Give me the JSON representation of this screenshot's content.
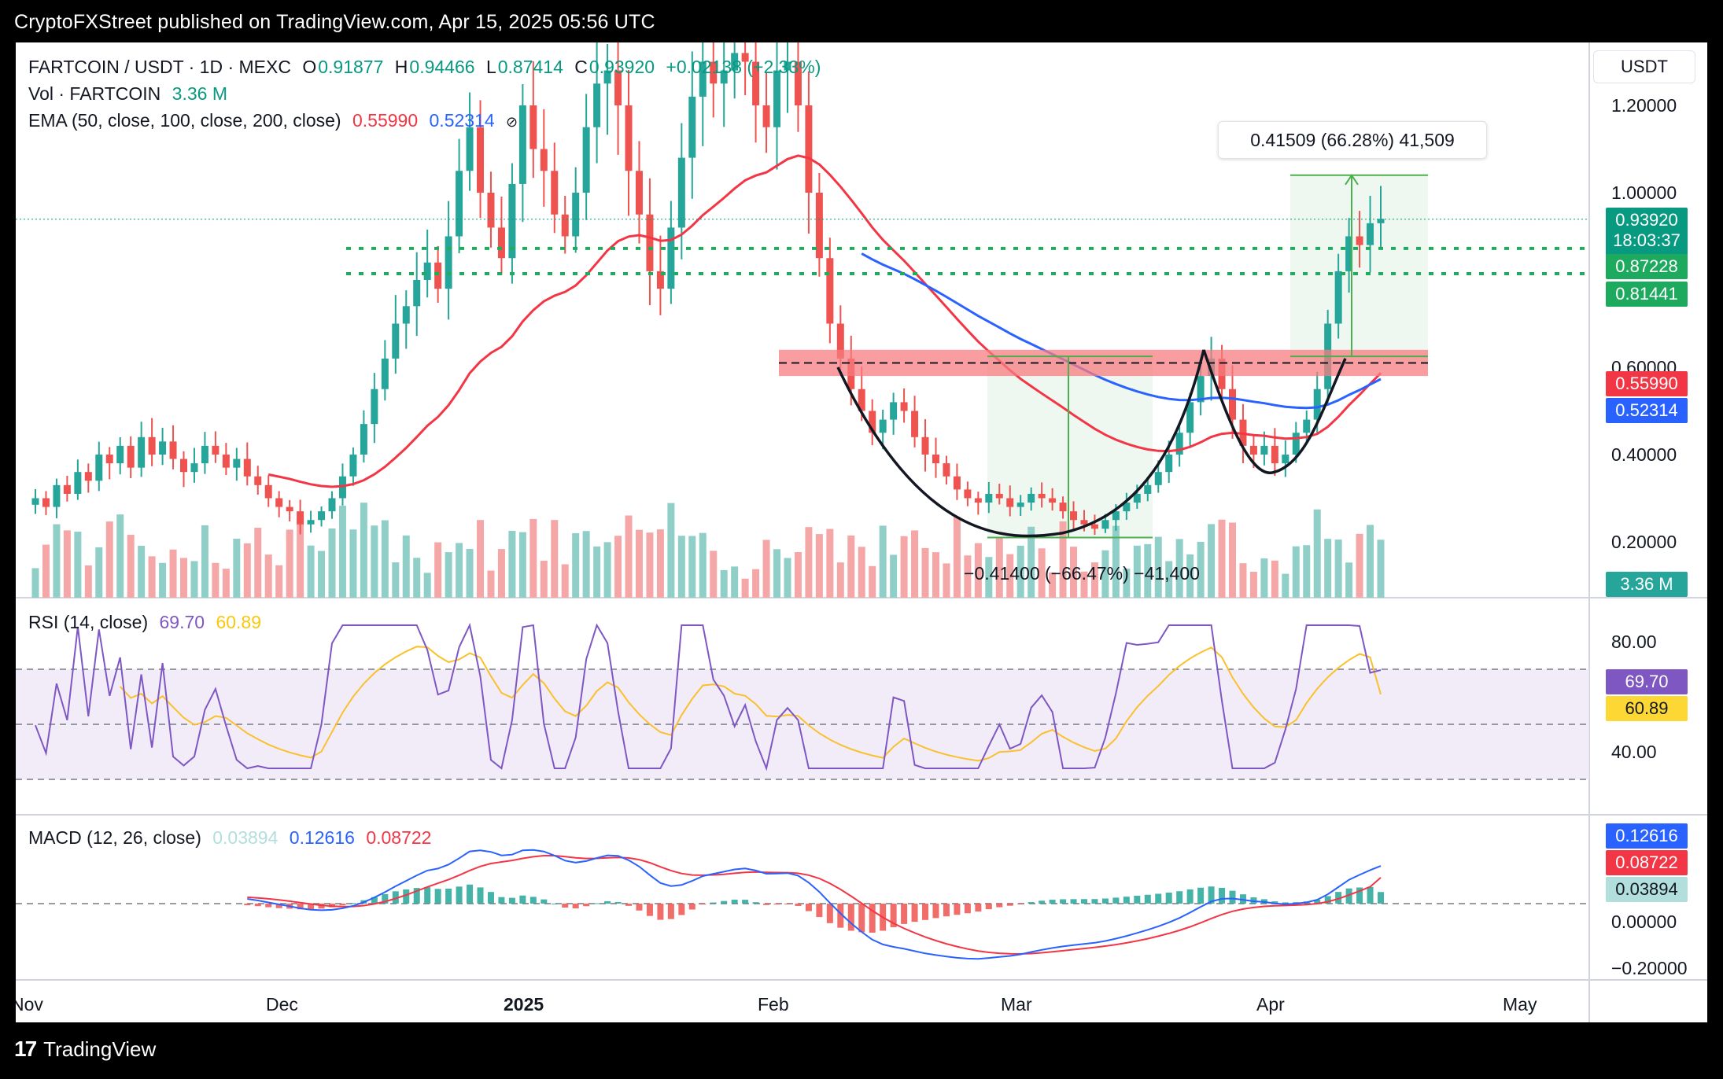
{
  "header": {
    "publisher": "CryptoFXStreet published on TradingView.com, Apr 15, 2025 05:56 UTC"
  },
  "footer": {
    "brand": "TradingView",
    "logo_icon": "tradingview-logo-icon"
  },
  "legend": {
    "symbol": "FARTCOIN / USDT · 1D · MEXC",
    "o_label": "O",
    "o_value": "0.91877",
    "h_label": "H",
    "h_value": "0.94466",
    "l_label": "L",
    "l_value": "0.87414",
    "c_label": "C",
    "c_value": "0.93920",
    "change": "+0.02138 (+2.33%)",
    "vol_label": "Vol · FARTCOIN",
    "vol_value": "3.36 M",
    "ema_label": "EMA (50, close, 100, close, 200, close)",
    "ema50_value": "0.55990",
    "ema100_value": "0.52314",
    "ema_icon": "hidden-eye-icon"
  },
  "currency": "USDT",
  "price_axis": [
    "1.20000",
    "1.00000",
    "0.60000",
    "0.40000",
    "0.20000"
  ],
  "price_tags": {
    "last": "0.93920",
    "countdown": "18:03:37",
    "res1": "0.87228",
    "res2": "0.81441",
    "ema50": "0.55990",
    "ema100": "0.52314",
    "volume": "3.36 M"
  },
  "measure_up": "0.41509 (66.28%) 41,509",
  "measure_down": "−0.41400 (−66.47%) −41,400",
  "rsi": {
    "label": "RSI (14, close)",
    "value": "69.70",
    "ma_value": "60.89",
    "axis": [
      "80.00",
      "40.00"
    ],
    "tag_value": "69.70",
    "tag_ma": "60.89"
  },
  "macd": {
    "label": "MACD (12, 26, close)",
    "hist_value": "0.03894",
    "macd_value": "0.12616",
    "signal_value": "0.08722",
    "axis": [
      "0.00000",
      "−0.20000"
    ],
    "tag_macd": "0.12616",
    "tag_signal": "0.08722",
    "tag_hist": "0.03894"
  },
  "time_axis": [
    "Nov",
    "Dec",
    "2025",
    "Feb",
    "Mar",
    "Apr",
    "May"
  ],
  "colors": {
    "up": "#26a69a",
    "down": "#ef5350",
    "ema50": "#f23645",
    "ema100": "#2962ff",
    "rsi": "#7e57c2",
    "rsi_ma": "#fdd835",
    "zone": "#f77c80"
  },
  "chart_data": {
    "type": "candlestick",
    "symbol": "FARTCOIN / USDT",
    "interval": "1D",
    "ylim": [
      0.12,
      1.3
    ],
    "x": [
      "2024-11-01",
      "2025-05-05"
    ],
    "resistance_levels": [
      0.87228,
      0.81441
    ],
    "supply_zone": [
      0.58,
      0.64
    ],
    "approx_close_series": [
      0.3,
      0.28,
      0.33,
      0.31,
      0.36,
      0.34,
      0.4,
      0.38,
      0.42,
      0.37,
      0.44,
      0.4,
      0.43,
      0.39,
      0.36,
      0.38,
      0.42,
      0.4,
      0.37,
      0.39,
      0.35,
      0.33,
      0.3,
      0.28,
      0.27,
      0.24,
      0.25,
      0.27,
      0.3,
      0.35,
      0.4,
      0.47,
      0.55,
      0.62,
      0.7,
      0.74,
      0.8,
      0.84,
      0.78,
      0.9,
      1.05,
      1.15,
      1.0,
      0.92,
      0.85,
      1.02,
      1.2,
      1.1,
      1.05,
      0.95,
      0.9,
      1.0,
      1.15,
      1.25,
      1.28,
      1.2,
      1.05,
      0.95,
      0.82,
      0.78,
      0.92,
      1.08,
      1.22,
      1.3,
      1.25,
      1.28,
      1.32,
      1.3,
      1.2,
      1.15,
      1.28,
      1.3,
      1.2,
      1.0,
      0.85,
      0.7,
      0.62,
      0.55,
      0.5,
      0.45,
      0.48,
      0.52,
      0.5,
      0.44,
      0.4,
      0.38,
      0.35,
      0.32,
      0.3,
      0.29,
      0.31,
      0.3,
      0.28,
      0.29,
      0.31,
      0.3,
      0.29,
      0.27,
      0.25,
      0.24,
      0.23,
      0.25,
      0.27,
      0.29,
      0.31,
      0.33,
      0.36,
      0.4,
      0.45,
      0.52,
      0.58,
      0.62,
      0.55,
      0.48,
      0.42,
      0.4,
      0.42,
      0.38,
      0.4,
      0.45,
      0.48,
      0.55,
      0.7,
      0.82,
      0.9,
      0.88,
      0.93,
      0.94
    ],
    "volume": {
      "last": 3.36
    },
    "ema": [
      {
        "period": 50,
        "last": 0.5599
      },
      {
        "period": 100,
        "last": 0.52314
      }
    ],
    "rsi": {
      "period": 14,
      "last": 69.7,
      "ma_last": 60.89,
      "levels": [
        70,
        50,
        30
      ]
    },
    "macd": {
      "fast": 12,
      "slow": 26,
      "macd_last": 0.12616,
      "signal_last": 0.08722,
      "hist_last": 0.03894
    }
  }
}
